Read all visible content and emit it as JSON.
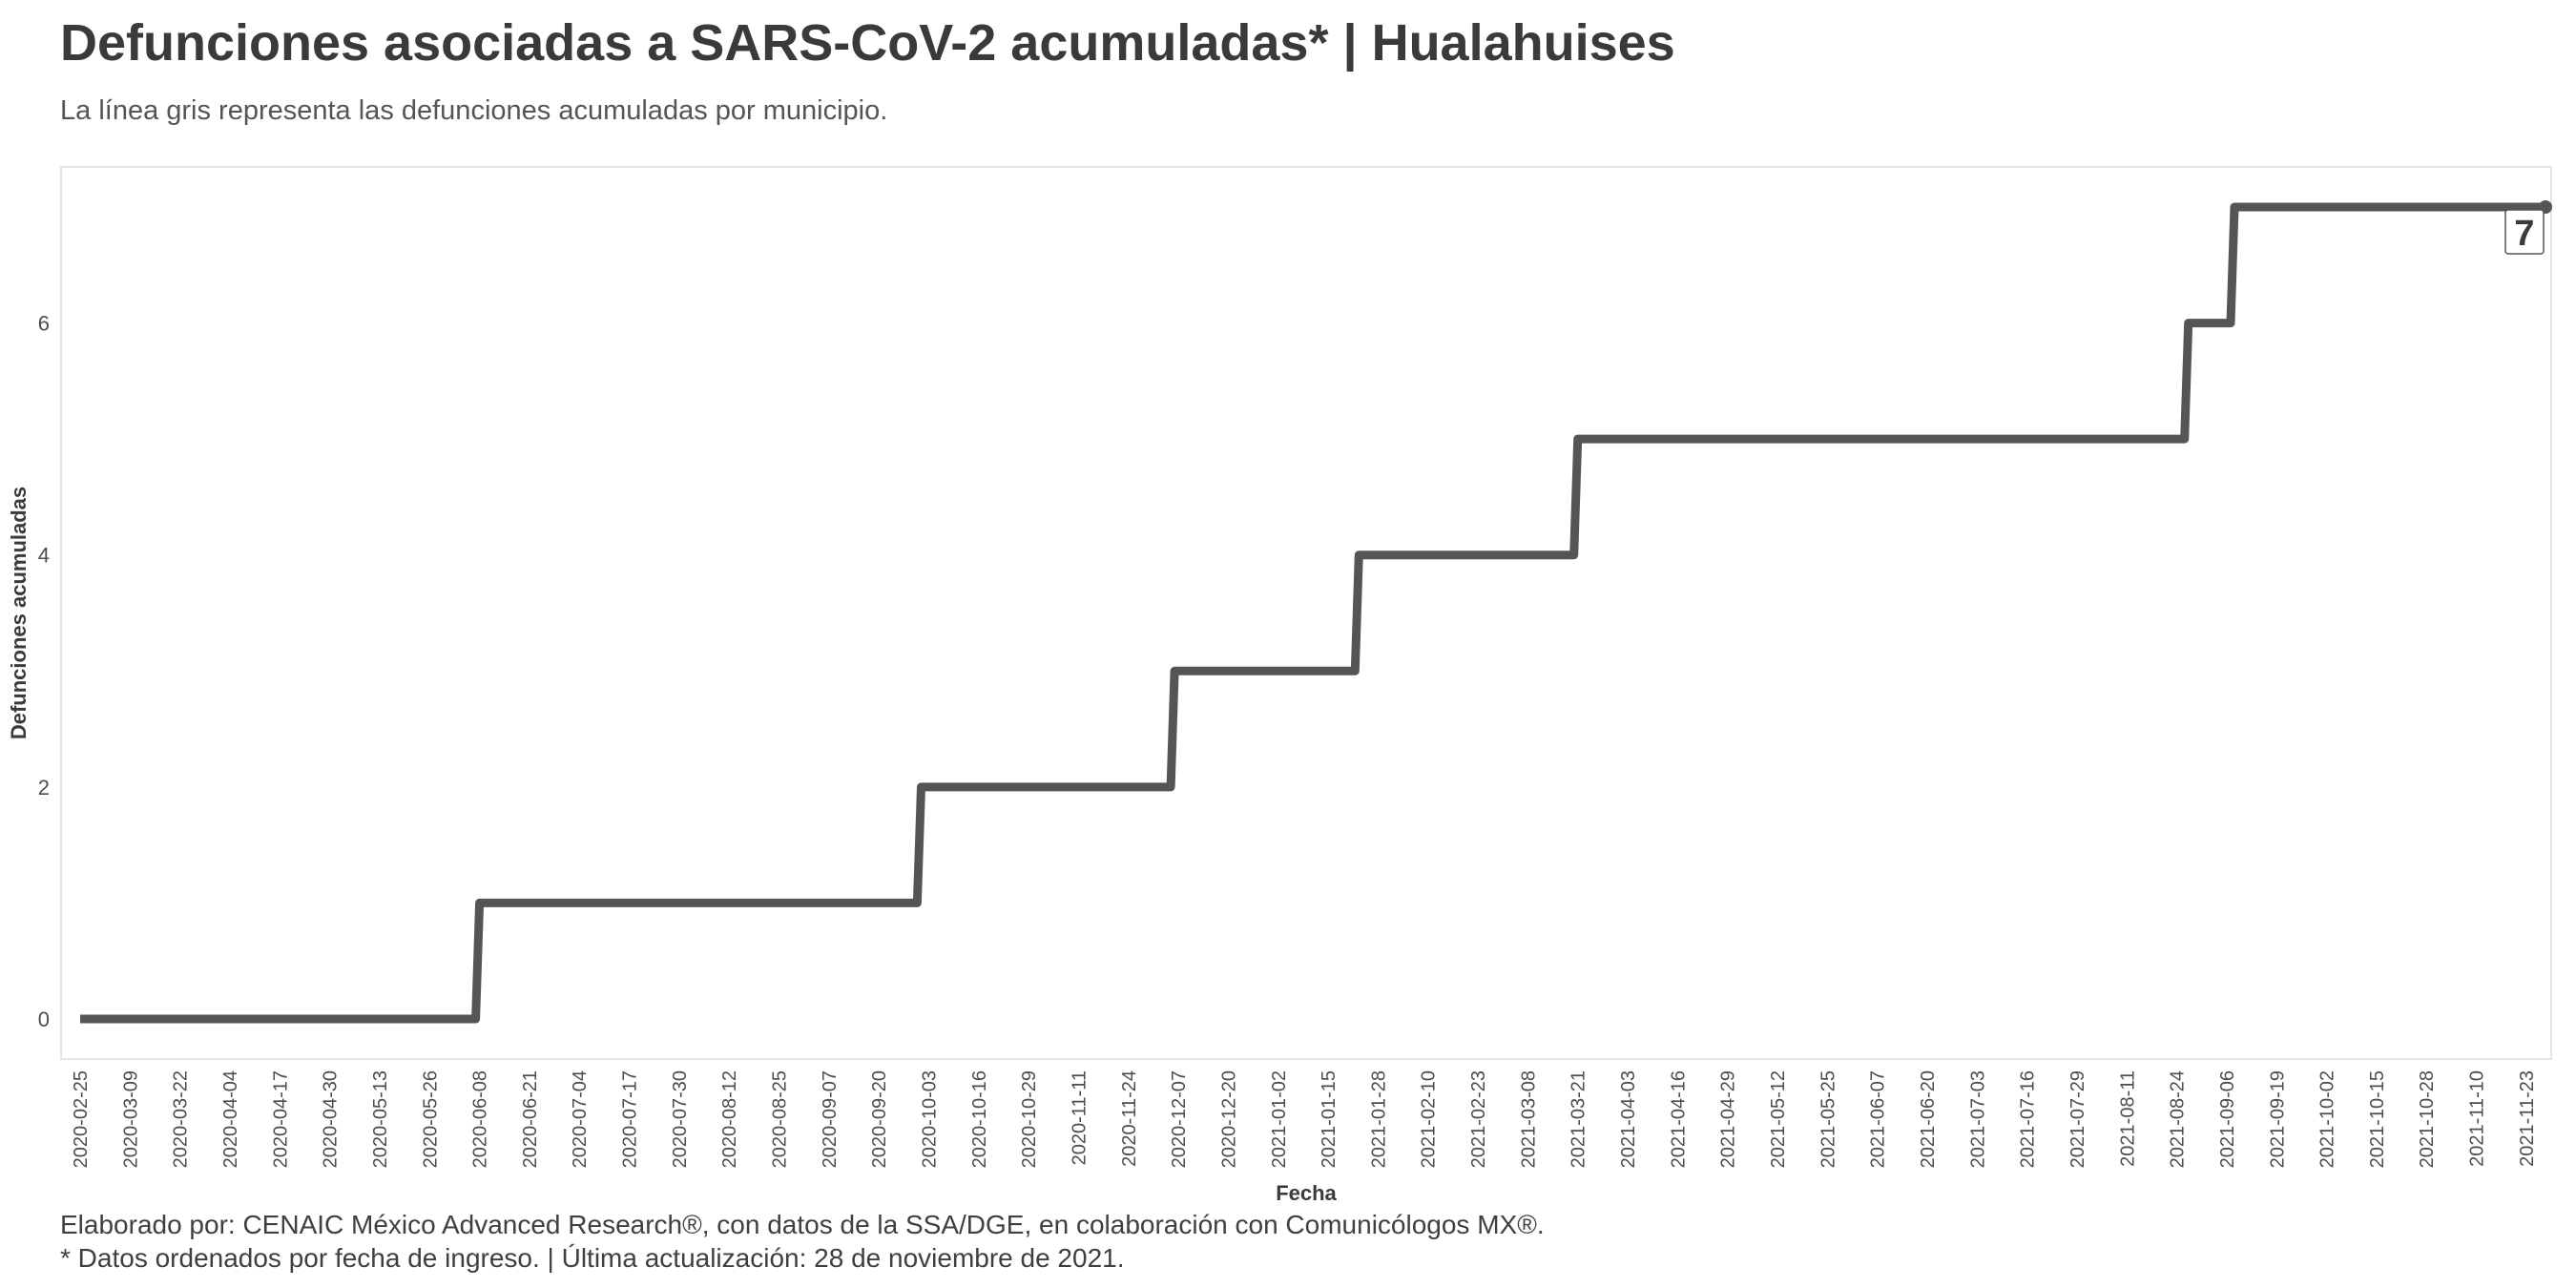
{
  "title": "Defunciones asociadas a SARS-CoV-2 acumuladas* | Hualahuises",
  "subtitle": "La línea gris representa las defunciones acumuladas por municipio.",
  "captions": [
    "Elaborado por: CENAIC México Advanced Research®, con datos de la SSA/DGE, en colaboración con Comunicólogos MX®.",
    "* Datos ordenados por fecha de ingreso. | Última actualización: 28 de noviembre de 2021."
  ],
  "colors": {
    "line": "#555555",
    "panel_border": "#e6e6e6",
    "text": "#3a3a3a"
  },
  "chart_data": {
    "type": "line",
    "step": true,
    "xlabel": "Fecha",
    "ylabel": "Defunciones acumuladas",
    "xlim": [
      "2020-02-25",
      "2021-11-28"
    ],
    "ylim": [
      0,
      7
    ],
    "yticks": [
      0,
      2,
      4,
      6
    ],
    "xticks": [
      "2020-02-25",
      "2020-03-09",
      "2020-03-22",
      "2020-04-04",
      "2020-04-17",
      "2020-04-30",
      "2020-05-13",
      "2020-05-26",
      "2020-06-08",
      "2020-06-21",
      "2020-07-04",
      "2020-07-17",
      "2020-07-30",
      "2020-08-12",
      "2020-08-25",
      "2020-09-07",
      "2020-09-20",
      "2020-10-03",
      "2020-10-16",
      "2020-10-29",
      "2020-11-11",
      "2020-11-24",
      "2020-12-07",
      "2020-12-20",
      "2021-01-02",
      "2021-01-15",
      "2021-01-28",
      "2021-02-10",
      "2021-02-23",
      "2021-03-08",
      "2021-03-21",
      "2021-04-03",
      "2021-04-16",
      "2021-04-29",
      "2021-05-12",
      "2021-05-25",
      "2021-06-07",
      "2021-06-20",
      "2021-07-03",
      "2021-07-16",
      "2021-07-29",
      "2021-08-11",
      "2021-08-24",
      "2021-09-06",
      "2021-09-19",
      "2021-10-02",
      "2021-10-15",
      "2021-10-28",
      "2021-11-10",
      "2021-11-23"
    ],
    "grid": false,
    "series": [
      {
        "x": [
          "2020-02-25",
          "2020-06-07",
          "2020-06-08",
          "2020-09-30",
          "2020-10-01",
          "2020-12-05",
          "2020-12-06",
          "2021-01-22",
          "2021-01-23",
          "2021-03-20",
          "2021-03-21",
          "2021-08-26",
          "2021-08-27",
          "2021-09-07",
          "2021-09-08",
          "2021-11-28"
        ],
        "y": [
          0,
          0,
          1,
          1,
          2,
          2,
          3,
          3,
          4,
          4,
          5,
          5,
          6,
          6,
          7,
          7
        ]
      }
    ],
    "end_label": "7"
  }
}
